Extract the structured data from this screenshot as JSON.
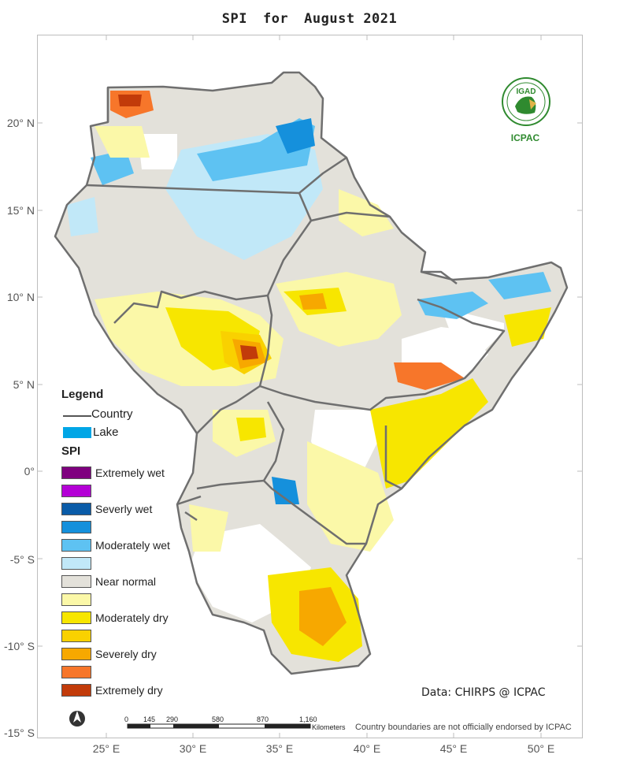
{
  "title": {
    "part1": "SPI",
    "part2": "for",
    "part3": "August 2021"
  },
  "lat_labels": [
    "20° N",
    "15° N",
    "10° N",
    "5° N",
    "0°",
    "-5° S",
    "-10° S",
    "-15° S"
  ],
  "lon_labels": [
    "25° E",
    "30° E",
    "35° E",
    "40° E",
    "45° E",
    "50° E"
  ],
  "legend": {
    "title": "Legend",
    "country": "Country",
    "lake": "Lake",
    "lake_color": "#00a6e6",
    "spi_title": "SPI",
    "classes": [
      {
        "label": "Extremely wet",
        "color": "#7f007f"
      },
      {
        "label": "",
        "color": "#b400d6"
      },
      {
        "label": "Severly wet",
        "color": "#0a5ca8"
      },
      {
        "label": "",
        "color": "#1590dc"
      },
      {
        "label": "Moderately wet",
        "color": "#5ec2f2"
      },
      {
        "label": "",
        "color": "#c1e8f8"
      },
      {
        "label": "Near normal",
        "color": "#e3e1da"
      },
      {
        "label": "",
        "color": "#fbf8a8"
      },
      {
        "label": "Moderately dry",
        "color": "#f7e600"
      },
      {
        "label": "",
        "color": "#f9d100"
      },
      {
        "label": "Severely dry",
        "color": "#f7a800"
      },
      {
        "label": "",
        "color": "#f7762a"
      },
      {
        "label": "Extremely dry",
        "color": "#c23b0a"
      }
    ]
  },
  "logo": {
    "text": "IGAD",
    "caption": "ICPAC"
  },
  "source": "Data: CHIRPS @ ICPAC",
  "disclaimer": "Country boundaries are not officially endorsed by ICPAC",
  "scale": {
    "ticks": [
      "0",
      "145",
      "290",
      "580",
      "870",
      "1,160"
    ],
    "unit": "Kilometers"
  }
}
